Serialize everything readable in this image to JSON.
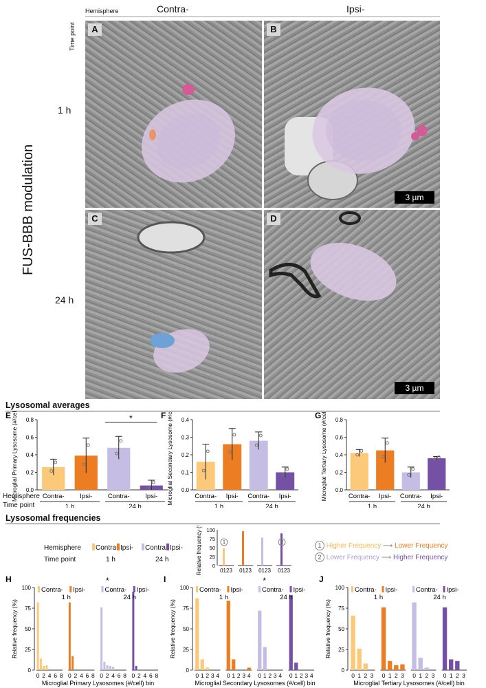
{
  "micrograph": {
    "hemisphere_label": "Hemisphere",
    "timepoint_label": "Time point",
    "col_contra": "Contra-",
    "col_ipsi": "Ipsi-",
    "row_1h": "1 h",
    "row_24h": "24 h",
    "side_title": "FUS-BBB modulation",
    "panels": [
      "A",
      "B",
      "C",
      "D"
    ],
    "scale_bar": "3 µm"
  },
  "averages": {
    "section_title": "Lysosomal averages",
    "row_hemisphere": "Hemisphere",
    "row_timepoint": "Time point",
    "groups": [
      "Contra-",
      "Ipsi-",
      "Contra-",
      "Ipsi-"
    ],
    "timepoints": [
      "1 h",
      "24 h"
    ],
    "colors": [
      "#fcc97a",
      "#ed7d22",
      "#c5bde3",
      "#7551a6"
    ]
  },
  "frequencies": {
    "section_title": "Lysosomal frequencies",
    "legend_hemisphere": "Hemisphere",
    "legend_timepoint": "Time point",
    "legend_groups": [
      "Contra-",
      "Ipsi-",
      "Contra-",
      "Ipsi-"
    ],
    "legend_timepoints": [
      "1 h",
      "24 h"
    ],
    "inset_ylabel": "Relative frequency (%)",
    "inset_yticks": [
      "100",
      "75",
      "50",
      "25",
      "0"
    ],
    "inset_xticks": "0123",
    "inset_markers": [
      "1",
      "2"
    ],
    "note1_num": "1",
    "note1_a": "Higher Frequency",
    "note1_b": "Lower Frequency",
    "note2_num": "2",
    "note2_a": "Lower Frequency",
    "note2_b": "Higher Frequency"
  },
  "chart_data": [
    {
      "panel": "E",
      "type": "bar",
      "ylabel": "Microglial Primary Lysosome (#/cell)",
      "ylim": [
        0,
        0.8
      ],
      "yticks": [
        "0.0",
        "0.2",
        "0.4",
        "0.6",
        "0.8"
      ],
      "categories": [
        "Contra-",
        "Ipsi-",
        "Contra-",
        "Ipsi-"
      ],
      "values": [
        0.26,
        0.39,
        0.48,
        0.05
      ],
      "errors": [
        0.09,
        0.2,
        0.13,
        0.06
      ],
      "significance": "*"
    },
    {
      "panel": "F",
      "type": "bar",
      "ylabel": "Microglial Secondary Lysosome (#/cell)",
      "ylim": [
        0,
        0.4
      ],
      "yticks": [
        "0.0",
        "0.1",
        "0.2",
        "0.3",
        "0.4"
      ],
      "categories": [
        "Contra-",
        "Ipsi-",
        "Contra-",
        "Ipsi-"
      ],
      "values": [
        0.16,
        0.26,
        0.28,
        0.1
      ],
      "errors": [
        0.1,
        0.09,
        0.05,
        0.03
      ]
    },
    {
      "panel": "G",
      "type": "bar",
      "ylabel": "Microglial Tertiary Lysosome (#/cell)",
      "ylim": [
        0,
        0.8
      ],
      "yticks": [
        "0.0",
        "0.2",
        "0.4",
        "0.6",
        "0.8"
      ],
      "categories": [
        "Contra-",
        "Ipsi-",
        "Contra-",
        "Ipsi-"
      ],
      "values": [
        0.42,
        0.45,
        0.2,
        0.36
      ],
      "errors": [
        0.04,
        0.14,
        0.06,
        0.02
      ]
    },
    {
      "panel": "H",
      "type": "bar",
      "ylabel": "Relative frequency (%)",
      "xlabel": "Microglial Primary Lysosomes (#/cell) bin",
      "ylim": [
        0,
        100
      ],
      "yticks": [
        "0",
        "25",
        "50",
        "75",
        "100"
      ],
      "bin_ticks": [
        "0",
        "2",
        "4",
        "6",
        "8"
      ],
      "significance": "*",
      "series": [
        {
          "values": [
            82,
            14,
            5,
            6,
            0,
            0,
            0,
            0,
            0
          ]
        },
        {
          "values": [
            82,
            17,
            0,
            0,
            0,
            0,
            0,
            0,
            0
          ]
        },
        {
          "values": [
            76,
            10,
            6,
            5,
            4,
            0,
            0,
            0,
            0
          ]
        },
        {
          "values": [
            95,
            5,
            0,
            0,
            0,
            0,
            0,
            0,
            0
          ]
        }
      ]
    },
    {
      "panel": "I",
      "type": "bar",
      "ylabel": "Relative frequency (%)",
      "xlabel": "Microglial Secondary Lysosomes (#/cell) bin",
      "ylim": [
        0,
        100
      ],
      "yticks": [
        "0",
        "25",
        "50",
        "75",
        "100"
      ],
      "bin_ticks": [
        "0",
        "1",
        "2",
        "3",
        "4"
      ],
      "significance": "*",
      "series": [
        {
          "values": [
            87,
            13,
            3,
            0,
            0
          ]
        },
        {
          "values": [
            84,
            13,
            0,
            0,
            3
          ]
        },
        {
          "values": [
            72,
            28,
            0,
            0,
            0
          ]
        },
        {
          "values": [
            91,
            9,
            0,
            0,
            0
          ]
        }
      ]
    },
    {
      "panel": "J",
      "type": "bar",
      "ylabel": "Relative frequency (%)",
      "xlabel": "Microglial Tertiary Lysosomes (#/cell) bin",
      "ylim": [
        0,
        100
      ],
      "yticks": [
        "0",
        "25",
        "50",
        "75",
        "100"
      ],
      "bin_ticks": [
        "0",
        "1",
        "2",
        "3"
      ],
      "series": [
        {
          "values": [
            66,
            26,
            8,
            0
          ]
        },
        {
          "values": [
            76,
            11,
            6,
            7
          ]
        },
        {
          "values": [
            82,
            15,
            3,
            0
          ]
        },
        {
          "values": [
            76,
            13,
            11,
            0
          ]
        }
      ]
    }
  ]
}
